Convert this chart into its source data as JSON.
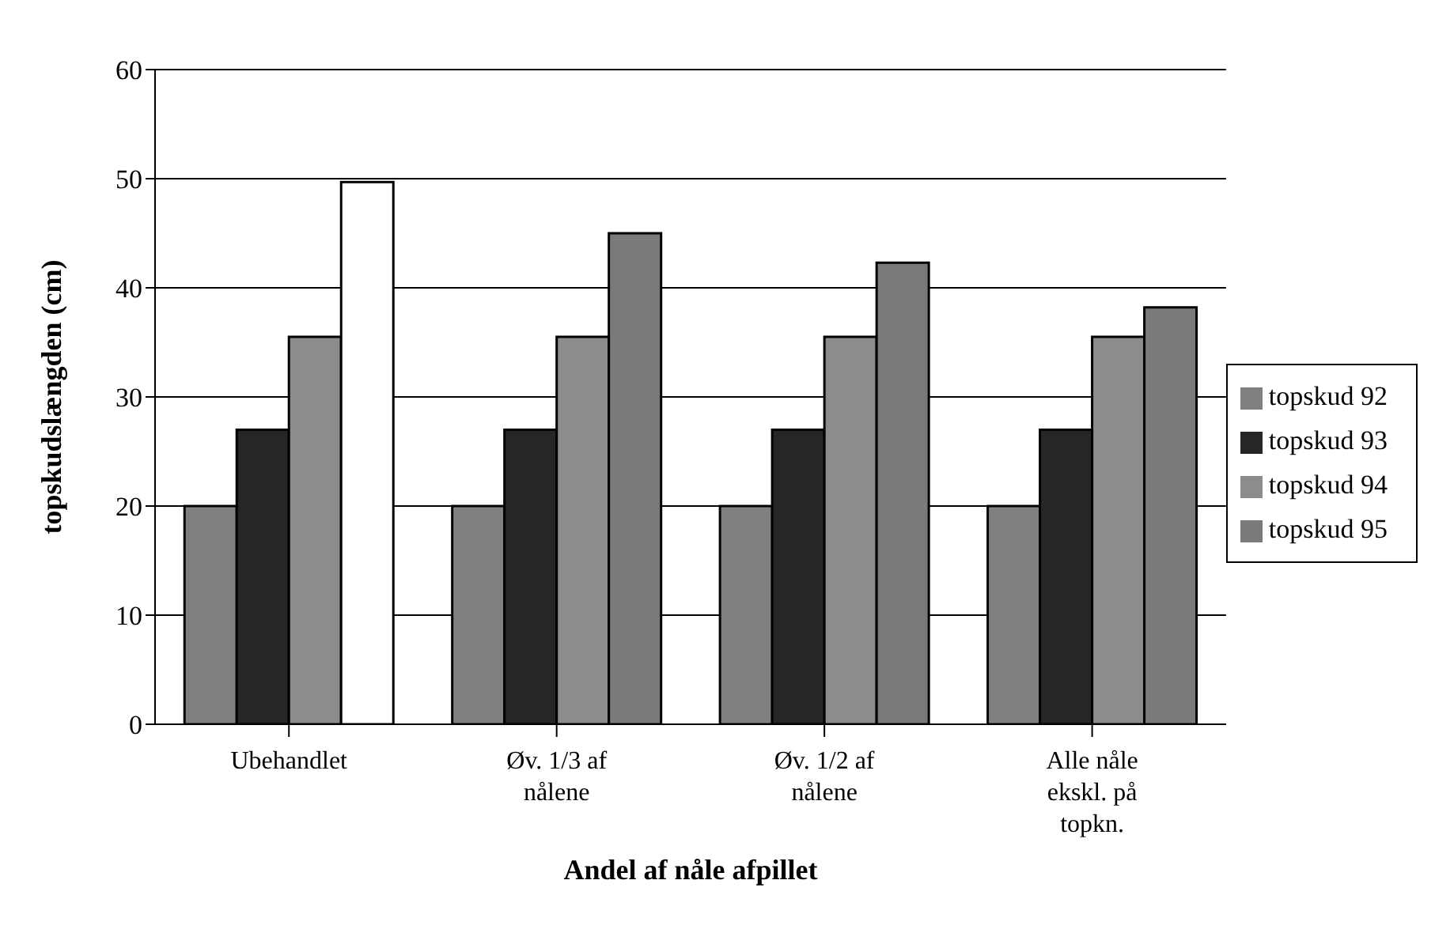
{
  "chart_data": {
    "type": "bar",
    "xlabel": "Andel af nåle afpillet",
    "ylabel": "topskudslængden (cm)",
    "categories": [
      "Ubehandlet",
      "Øv. 1/3 af nålene",
      "Øv. 1/2 af nålene",
      "Alle nåle ekskl. på topkn."
    ],
    "series": [
      {
        "name": "topskud 92",
        "color": "#808080",
        "values": [
          20,
          20,
          20,
          20
        ]
      },
      {
        "name": "topskud 93",
        "color": "#262626",
        "values": [
          27,
          27,
          27,
          27
        ]
      },
      {
        "name": "topskud 94",
        "color": "#8c8c8c",
        "values": [
          35.5,
          35.5,
          35.5,
          35.5
        ]
      },
      {
        "name": "topskud 95",
        "color": "#7a7a7a",
        "colors": [
          "#ffffff",
          "#7a7a7a",
          "#7a7a7a",
          "#7a7a7a"
        ],
        "values": [
          49.7,
          45,
          42.3,
          38.2
        ]
      }
    ],
    "ylim": [
      0,
      60
    ],
    "yticks": [
      0,
      10,
      20,
      30,
      40,
      50,
      60
    ],
    "grid": "y",
    "legend": "right"
  }
}
